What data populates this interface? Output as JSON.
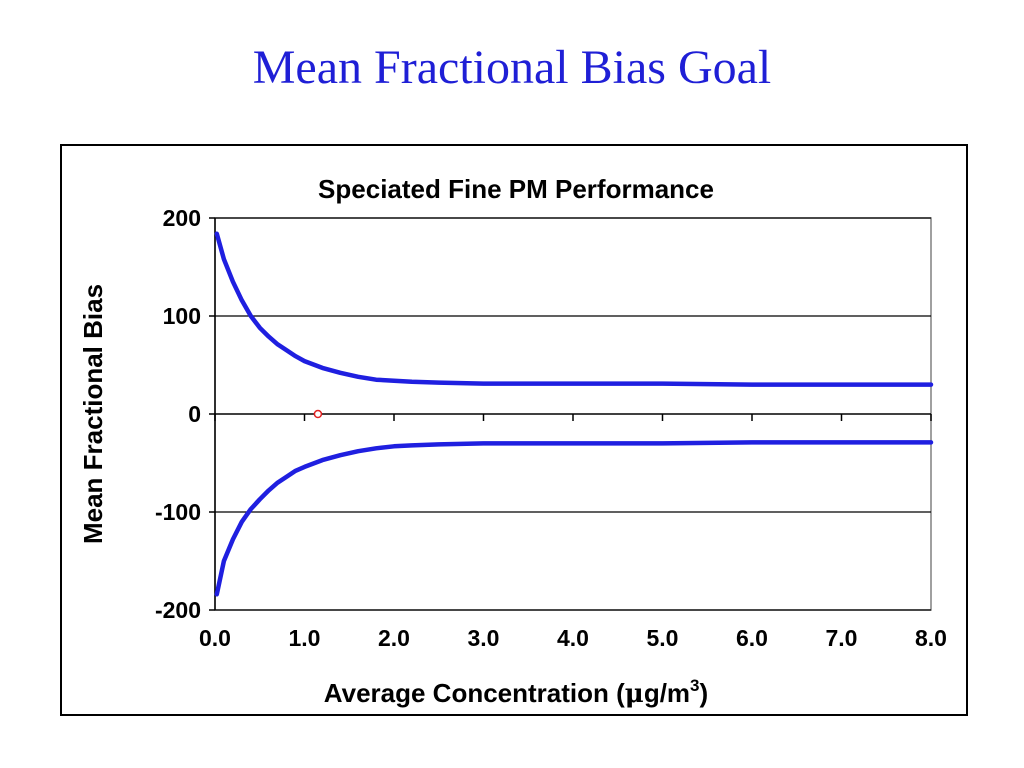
{
  "slide": {
    "title": "Mean Fractional Bias Goal"
  },
  "colors": {
    "title": "#1f1fd6",
    "series": "#1f1fe0",
    "marker": "#e02020",
    "axis": "#000000",
    "plot_border": "#808080"
  },
  "chart_data": {
    "type": "line",
    "title": "Speciated Fine PM Performance",
    "xlabel": "Average Concentration (μg/m³)",
    "xlabel_parts": {
      "main": "Average Concentration (",
      "mu": "μ",
      "unit": "g/m",
      "sup": "3",
      "close": ")"
    },
    "ylabel": "Mean Fractional Bias",
    "xlim": [
      0,
      8
    ],
    "ylim": [
      -200,
      200
    ],
    "x_ticks": [
      "0.0",
      "1.0",
      "2.0",
      "3.0",
      "4.0",
      "5.0",
      "6.0",
      "7.0",
      "8.0"
    ],
    "x_tick_values": [
      0,
      1,
      2,
      3,
      4,
      5,
      6,
      7,
      8
    ],
    "y_ticks": [
      "200",
      "100",
      "0",
      "-100",
      "-200"
    ],
    "y_tick_values": [
      200,
      100,
      0,
      -100,
      -200
    ],
    "gridlines_y": [
      200,
      100,
      -100,
      -200
    ],
    "series": [
      {
        "x": [
          0.02,
          0.1,
          0.2,
          0.3,
          0.4,
          0.5,
          0.6,
          0.7,
          0.8,
          0.9,
          1.0,
          1.2,
          1.4,
          1.6,
          1.8,
          2.0,
          2.2,
          2.5,
          3.0,
          4.0,
          5.0,
          6.0,
          7.0,
          8.0
        ],
        "values": [
          184,
          158,
          135,
          116,
          100,
          88,
          79,
          71,
          65,
          59,
          54,
          47,
          42,
          38,
          35,
          34,
          33,
          32,
          31,
          31,
          31,
          30,
          30,
          30
        ]
      },
      {
        "x": [
          0.02,
          0.1,
          0.2,
          0.3,
          0.4,
          0.5,
          0.6,
          0.7,
          0.8,
          0.9,
          1.0,
          1.2,
          1.4,
          1.6,
          1.8,
          2.0,
          2.2,
          2.5,
          3.0,
          4.0,
          5.0,
          6.0,
          7.0,
          8.0
        ],
        "values": [
          -184,
          -150,
          -128,
          -110,
          -97,
          -87,
          -78,
          -70,
          -64,
          -58,
          -54,
          -47,
          -42,
          -38,
          -35,
          -33,
          -32,
          -31,
          -30,
          -30,
          -30,
          -29,
          -29,
          -29
        ]
      }
    ],
    "points": [
      {
        "x": 1.15,
        "y": 0
      }
    ]
  }
}
